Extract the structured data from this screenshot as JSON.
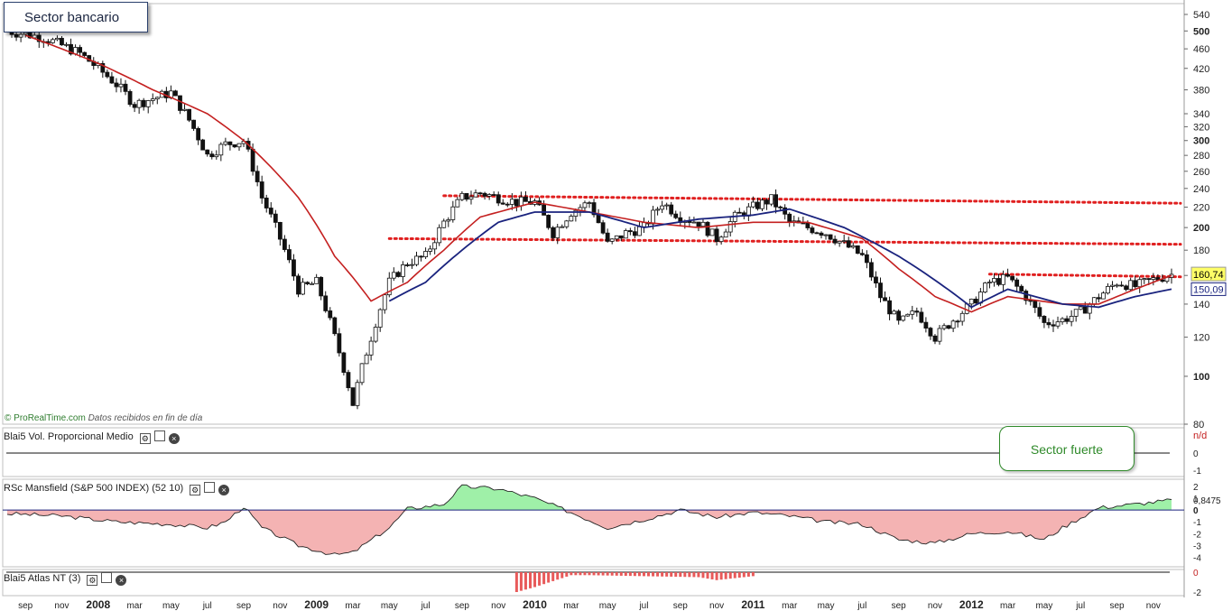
{
  "chart_title": "Sector bancario",
  "credit": {
    "brand": "© ProRealTime.com",
    "note": "Datos recibidos en fin de día"
  },
  "callout_label": "Sector fuerte",
  "colors": {
    "up_candle": "#ffffff",
    "down_candle": "#111111",
    "ma_long": "#c42020",
    "ma_short": "#1a237e",
    "support_lines": "#e02020",
    "rs_positive": "#9ff0a8",
    "rs_negative": "#f4b3b3",
    "price_tag": "#ffff66"
  },
  "chart_data": [
    {
      "type": "candlestick",
      "title": "Sector bancario",
      "scale": "log",
      "ylim": [
        80,
        540
      ],
      "y_ticks": [
        "540",
        "500",
        "460",
        "420",
        "380",
        "340",
        "320",
        "300",
        "280",
        "260",
        "240",
        "220",
        "200",
        "180",
        "160",
        "140",
        "120",
        "100",
        "80"
      ],
      "x_ticks": [
        "sep",
        "nov",
        "2008",
        "mar",
        "may",
        "jul",
        "sep",
        "nov",
        "2009",
        "mar",
        "may",
        "jul",
        "sep",
        "nov",
        "2010",
        "mar",
        "may",
        "jul",
        "sep",
        "nov",
        "2011",
        "mar",
        "may",
        "jul",
        "sep",
        "nov",
        "2012",
        "mar",
        "may",
        "jul",
        "sep",
        "nov"
      ],
      "x_range": [
        "2007-08",
        "2012-12"
      ],
      "last_price": "160,74",
      "ma_short_last": "150,09",
      "price_path": [
        [
          "2007-08",
          500
        ],
        [
          "2007-10",
          485
        ],
        [
          "2007-12",
          450
        ],
        [
          "2008-02",
          390
        ],
        [
          "2008-03",
          355
        ],
        [
          "2008-05",
          375
        ],
        [
          "2008-06",
          330
        ],
        [
          "2008-07",
          280
        ],
        [
          "2008-08",
          295
        ],
        [
          "2008-09",
          300
        ],
        [
          "2008-10",
          230
        ],
        [
          "2008-11",
          190
        ],
        [
          "2008-12",
          150
        ],
        [
          "2009-01",
          155
        ],
        [
          "2009-02",
          120
        ],
        [
          "2009-03",
          88
        ],
        [
          "2009-04",
          120
        ],
        [
          "2009-05",
          155
        ],
        [
          "2009-06",
          170
        ],
        [
          "2009-07",
          175
        ],
        [
          "2009-08",
          205
        ],
        [
          "2009-09",
          230
        ],
        [
          "2009-10",
          235
        ],
        [
          "2009-11",
          230
        ],
        [
          "2009-12",
          225
        ],
        [
          "2010-01",
          225
        ],
        [
          "2010-02",
          195
        ],
        [
          "2010-03",
          215
        ],
        [
          "2010-04",
          225
        ],
        [
          "2010-05",
          185
        ],
        [
          "2010-06",
          195
        ],
        [
          "2010-07",
          200
        ],
        [
          "2010-08",
          225
        ],
        [
          "2010-09",
          210
        ],
        [
          "2010-10",
          205
        ],
        [
          "2010-11",
          190
        ],
        [
          "2010-12",
          210
        ],
        [
          "2011-01",
          220
        ],
        [
          "2011-02",
          228
        ],
        [
          "2011-03",
          205
        ],
        [
          "2011-04",
          200
        ],
        [
          "2011-05",
          195
        ],
        [
          "2011-06",
          185
        ],
        [
          "2011-07",
          175
        ],
        [
          "2011-08",
          145
        ],
        [
          "2011-09",
          128
        ],
        [
          "2011-10",
          135
        ],
        [
          "2011-11",
          120
        ],
        [
          "2011-12",
          130
        ],
        [
          "2012-01",
          140
        ],
        [
          "2012-02",
          155
        ],
        [
          "2012-03",
          158
        ],
        [
          "2012-04",
          145
        ],
        [
          "2012-05",
          128
        ],
        [
          "2012-06",
          130
        ],
        [
          "2012-07",
          135
        ],
        [
          "2012-08",
          145
        ],
        [
          "2012-09",
          155
        ],
        [
          "2012-10",
          152
        ],
        [
          "2012-11",
          157
        ],
        [
          "2012-12",
          160.74
        ]
      ],
      "ma_long_path": [
        [
          "2007-09",
          490
        ],
        [
          "2008-01",
          430
        ],
        [
          "2008-04",
          380
        ],
        [
          "2008-07",
          340
        ],
        [
          "2008-09",
          300
        ],
        [
          "2008-12",
          230
        ],
        [
          "2009-02",
          175
        ],
        [
          "2009-04",
          142
        ],
        [
          "2009-06",
          155
        ],
        [
          "2009-08",
          180
        ],
        [
          "2009-10",
          210
        ],
        [
          "2010-01",
          225
        ],
        [
          "2010-04",
          215
        ],
        [
          "2010-07",
          205
        ],
        [
          "2010-10",
          200
        ],
        [
          "2011-01",
          205
        ],
        [
          "2011-04",
          205
        ],
        [
          "2011-07",
          190
        ],
        [
          "2011-09",
          165
        ],
        [
          "2011-11",
          145
        ],
        [
          "2012-01",
          135
        ],
        [
          "2012-03",
          145
        ],
        [
          "2012-06",
          140
        ],
        [
          "2012-08",
          140
        ],
        [
          "2012-10",
          150
        ],
        [
          "2012-12",
          160
        ]
      ],
      "ma_short_path": [
        [
          "2009-05",
          142
        ],
        [
          "2009-07",
          155
        ],
        [
          "2009-09",
          180
        ],
        [
          "2009-11",
          205
        ],
        [
          "2010-01",
          215
        ],
        [
          "2010-04",
          215
        ],
        [
          "2010-07",
          200
        ],
        [
          "2010-10",
          208
        ],
        [
          "2011-01",
          212
        ],
        [
          "2011-03",
          218
        ],
        [
          "2011-06",
          200
        ],
        [
          "2011-09",
          175
        ],
        [
          "2012-01",
          138
        ],
        [
          "2012-03",
          150
        ],
        [
          "2012-06",
          140
        ],
        [
          "2012-08",
          138
        ],
        [
          "2012-10",
          145
        ],
        [
          "2012-12",
          150.09
        ]
      ],
      "horizontal_lines": [
        {
          "from": "2009-08",
          "to": "2012-12",
          "y_start": 232,
          "y_end": 224
        },
        {
          "from": "2009-05",
          "to": "2012-12",
          "y_start": 190,
          "y_end": 185
        },
        {
          "from": "2012-02",
          "to": "2012-12",
          "y_start": 161,
          "y_end": 159
        }
      ]
    },
    {
      "type": "line",
      "title": "Blai5 Vol. Proporcional Medio",
      "value_label": "n/d",
      "y_ticks": [
        "0",
        "-1"
      ]
    },
    {
      "type": "area",
      "title": "RSc Mansfield (S&P 500 INDEX) (52 10)",
      "last_value": "0,8475",
      "ylim": [
        -4.5,
        2
      ],
      "y_ticks": [
        "2",
        "1",
        "0",
        "-1",
        "-2",
        "-3",
        "-4"
      ],
      "values": [
        [
          "2007-08",
          -0.3
        ],
        [
          "2007-11",
          -0.5
        ],
        [
          "2008-02",
          -1.0
        ],
        [
          "2008-05",
          -1.2
        ],
        [
          "2008-07",
          -1.5
        ],
        [
          "2008-08",
          -1.0
        ],
        [
          "2008-09",
          0.3
        ],
        [
          "2008-10",
          -1.5
        ],
        [
          "2008-12",
          -3.0
        ],
        [
          "2009-02",
          -3.8
        ],
        [
          "2009-03",
          -3.6
        ],
        [
          "2009-05",
          -1.5
        ],
        [
          "2009-06",
          0.1
        ],
        [
          "2009-08",
          0.5
        ],
        [
          "2009-09",
          2.0
        ],
        [
          "2009-11",
          1.8
        ],
        [
          "2010-01",
          1.0
        ],
        [
          "2010-03",
          -0.2
        ],
        [
          "2010-05",
          -1.5
        ],
        [
          "2010-07",
          -0.8
        ],
        [
          "2010-09",
          0.0
        ],
        [
          "2010-11",
          -0.6
        ],
        [
          "2011-01",
          -0.2
        ],
        [
          "2011-03",
          -0.5
        ],
        [
          "2011-05",
          -1.0
        ],
        [
          "2011-07",
          -1.2
        ],
        [
          "2011-09",
          -2.5
        ],
        [
          "2011-11",
          -2.8
        ],
        [
          "2012-01",
          -2.0
        ],
        [
          "2012-03",
          -1.8
        ],
        [
          "2012-05",
          -2.5
        ],
        [
          "2012-06",
          -1.5
        ],
        [
          "2012-08",
          0.2
        ],
        [
          "2012-10",
          0.5
        ],
        [
          "2012-12",
          0.85
        ]
      ]
    },
    {
      "type": "bar",
      "title": "Blai5 Atlas NT (3)",
      "y_ticks": [
        "0",
        "-2"
      ],
      "values": [
        [
          "2009-12",
          -2.0
        ],
        [
          "2010-01",
          -1.5
        ],
        [
          "2010-03",
          -0.3
        ],
        [
          "2010-04",
          -0.3
        ],
        [
          "2010-10",
          -0.5
        ],
        [
          "2010-11",
          -0.8
        ],
        [
          "2011-01",
          -0.4
        ]
      ]
    }
  ]
}
